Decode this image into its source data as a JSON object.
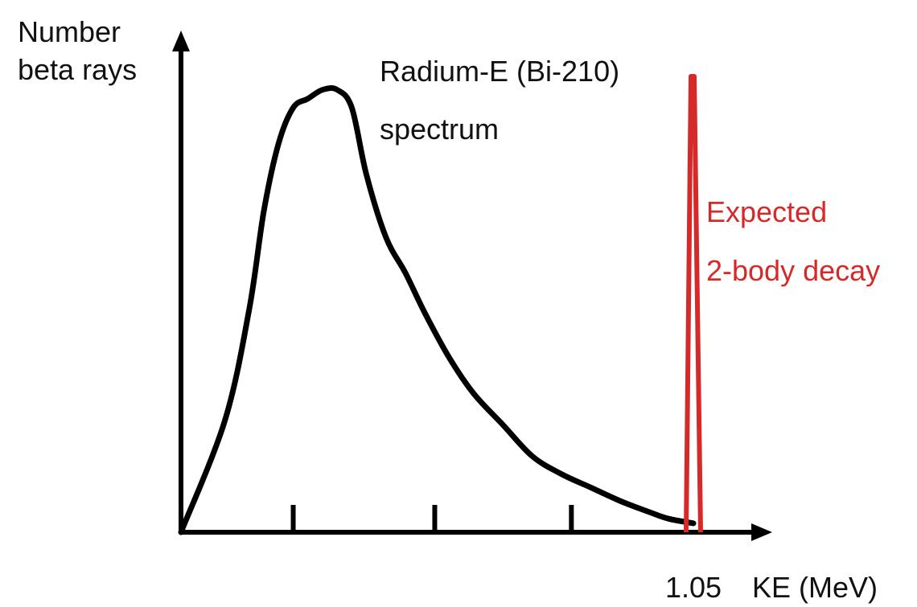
{
  "chart_data": {
    "type": "line",
    "title": "Radium-E (Bi-210)",
    "subtitle": "spectrum",
    "ylabel_lines": [
      "Number",
      "beta rays"
    ],
    "xlabel": "KE (MeV)",
    "xlim": [
      0,
      1.16
    ],
    "ylim": [
      0,
      1.02
    ],
    "x_tick_positions": [
      0.23,
      0.52,
      0.8
    ],
    "x_tick_labels": [
      {
        "x": 1.05,
        "label": "1.05"
      }
    ],
    "grid": false,
    "legend": "none",
    "series": [
      {
        "name": "",
        "color": "#000000",
        "x": [
          0,
          0.09,
          0.14,
          0.17,
          0.2,
          0.23,
          0.26,
          0.29,
          0.32,
          0.35,
          0.38,
          0.42,
          0.46,
          0.5,
          0.55,
          0.6,
          0.66,
          0.72,
          0.78,
          0.84,
          0.9,
          0.96,
          1.0,
          1.05
        ],
        "y": [
          0,
          0.25,
          0.5,
          0.72,
          0.87,
          0.95,
          0.97,
          0.99,
          0.99,
          0.95,
          0.8,
          0.66,
          0.58,
          0.49,
          0.39,
          0.31,
          0.24,
          0.17,
          0.13,
          0.1,
          0.07,
          0.045,
          0.03,
          0.02
        ]
      }
    ],
    "annotations": [
      {
        "lines": [
          "Expected",
          "2-body decay"
        ],
        "color": "#d62a2a",
        "spike_x": 1.05,
        "spike_height": 1.02
      }
    ]
  }
}
